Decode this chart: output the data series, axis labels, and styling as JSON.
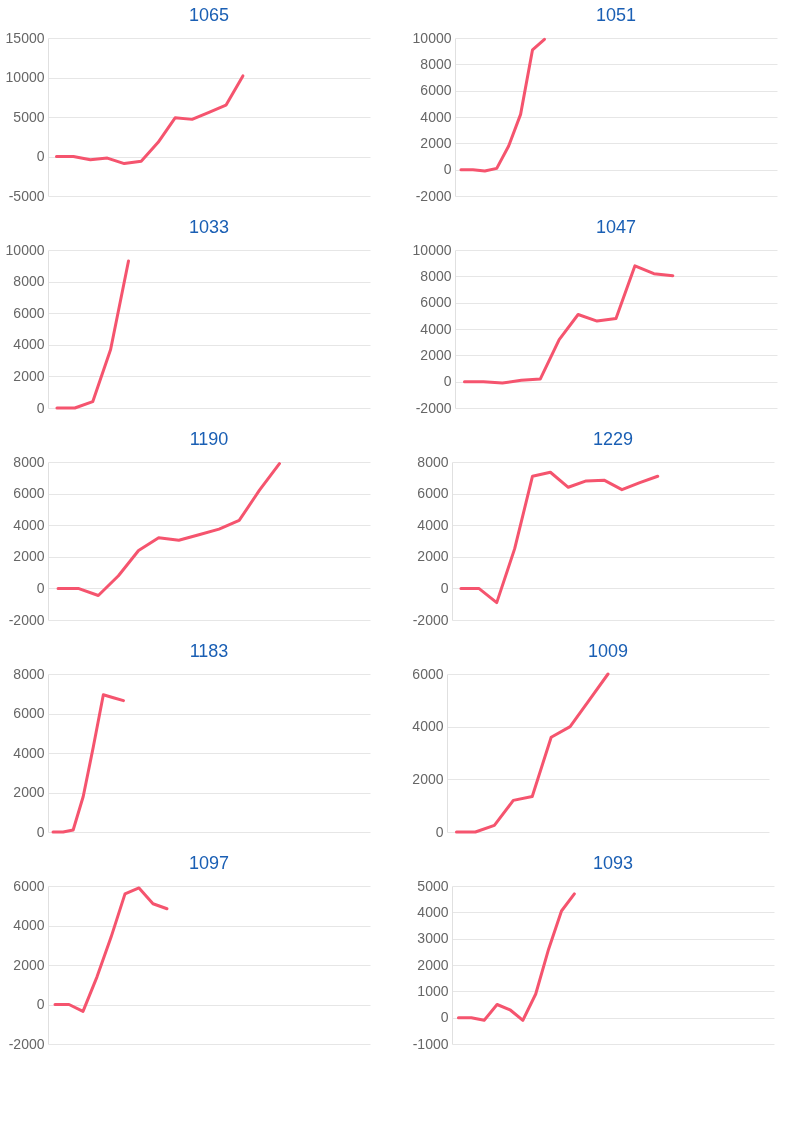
{
  "chart_data": [
    {
      "type": "line",
      "title": "1065",
      "categories": [
        null,
        null,
        null,
        null,
        null,
        null,
        null,
        null,
        null,
        null,
        null,
        null,
        null,
        null,
        null,
        null,
        null,
        null,
        null
      ],
      "series": [
        {
          "color": "#f5546e",
          "values": [
            0,
            0,
            -400,
            -200,
            -900,
            -600,
            1800,
            4900,
            4700,
            5600,
            6500,
            10200,
            null,
            null,
            null,
            null,
            null,
            null,
            null
          ]
        }
      ],
      "ylim": [
        -5000,
        15000
      ],
      "yticks": [
        -5000,
        0,
        5000,
        10000,
        15000
      ],
      "grid": "y",
      "tick_labels": "y",
      "marker": "none",
      "line_style": "solid"
    },
    {
      "type": "line",
      "title": "1051",
      "categories": [
        null,
        null,
        null,
        null,
        null,
        null,
        null,
        null,
        null,
        null,
        null,
        null,
        null,
        null,
        null,
        null,
        null,
        null,
        null,
        null,
        null,
        null,
        null,
        null,
        null,
        null,
        null
      ],
      "series": [
        {
          "color": "#f5546e",
          "values": [
            0,
            0,
            -100,
            100,
            1800,
            4200,
            9100,
            9900,
            null,
            null,
            null,
            null,
            null,
            null,
            null,
            null,
            null,
            null,
            null,
            null,
            null,
            null,
            null,
            null,
            null,
            null,
            null
          ]
        }
      ],
      "ylim": [
        -2000,
        10000
      ],
      "yticks": [
        -2000,
        0,
        2000,
        4000,
        6000,
        8000,
        10000
      ],
      "grid": "y",
      "tick_labels": "y",
      "marker": "none",
      "line_style": "solid"
    },
    {
      "type": "line",
      "title": "1033",
      "categories": [
        null,
        null,
        null,
        null,
        null,
        null,
        null,
        null,
        null,
        null,
        null,
        null,
        null,
        null,
        null,
        null,
        null,
        null
      ],
      "series": [
        {
          "color": "#f5546e",
          "values": [
            0,
            0,
            400,
            3700,
            9300,
            null,
            null,
            null,
            null,
            null,
            null,
            null,
            null,
            null,
            null,
            null,
            null,
            null
          ]
        }
      ],
      "ylim": [
        0,
        10000
      ],
      "yticks": [
        0,
        2000,
        4000,
        6000,
        8000,
        10000
      ],
      "grid": "y",
      "tick_labels": "y",
      "marker": "none",
      "line_style": "solid"
    },
    {
      "type": "line",
      "title": "1047",
      "categories": [
        null,
        null,
        null,
        null,
        null,
        null,
        null,
        null,
        null,
        null,
        null,
        null,
        null,
        null,
        null,
        null,
        null
      ],
      "series": [
        {
          "color": "#f5546e",
          "values": [
            0,
            0,
            -100,
            100,
            200,
            3200,
            5100,
            4600,
            4800,
            8800,
            8200,
            8050,
            null,
            null,
            null,
            null,
            null
          ]
        }
      ],
      "ylim": [
        -2000,
        10000
      ],
      "yticks": [
        -2000,
        0,
        2000,
        4000,
        6000,
        8000,
        10000
      ],
      "grid": "y",
      "tick_labels": "y",
      "marker": "none",
      "line_style": "solid"
    },
    {
      "type": "line",
      "title": "1190",
      "categories": [
        null,
        null,
        null,
        null,
        null,
        null,
        null,
        null,
        null,
        null,
        null,
        null,
        null,
        null,
        null,
        null
      ],
      "series": [
        {
          "color": "#f5546e",
          "values": [
            0,
            0,
            -450,
            800,
            2400,
            3200,
            3050,
            3400,
            3750,
            4300,
            6200,
            7900,
            null,
            null,
            null,
            null
          ]
        }
      ],
      "ylim": [
        -2000,
        8000
      ],
      "yticks": [
        -2000,
        0,
        2000,
        4000,
        6000,
        8000
      ],
      "grid": "y",
      "tick_labels": "y",
      "marker": "none",
      "line_style": "solid"
    },
    {
      "type": "line",
      "title": "1229",
      "categories": [
        null,
        null,
        null,
        null,
        null,
        null,
        null,
        null,
        null,
        null,
        null,
        null,
        null,
        null,
        null,
        null,
        null,
        null
      ],
      "series": [
        {
          "color": "#f5546e",
          "values": [
            0,
            0,
            -900,
            2500,
            7100,
            7350,
            6400,
            6800,
            6850,
            6250,
            6700,
            7100,
            null,
            null,
            null,
            null,
            null,
            null
          ]
        }
      ],
      "ylim": [
        -2000,
        8000
      ],
      "yticks": [
        -2000,
        0,
        2000,
        4000,
        6000,
        8000
      ],
      "grid": "y",
      "tick_labels": "y",
      "marker": "none",
      "line_style": "solid"
    },
    {
      "type": "line",
      "title": "1183",
      "categories": [
        null,
        null,
        null,
        null,
        null,
        null,
        null,
        null,
        null,
        null,
        null,
        null,
        null,
        null,
        null,
        null,
        null,
        null,
        null,
        null,
        null,
        null,
        null,
        null,
        null,
        null,
        null,
        null,
        null,
        null,
        null,
        null
      ],
      "series": [
        {
          "color": "#f5546e",
          "values": [
            0,
            0,
            100,
            1800,
            4300,
            6950,
            6800,
            6650,
            null,
            null,
            null,
            null,
            null,
            null,
            null,
            null,
            null,
            null,
            null,
            null,
            null,
            null,
            null,
            null,
            null,
            null,
            null,
            null,
            null,
            null,
            null,
            null
          ]
        }
      ],
      "ylim": [
        0,
        8000
      ],
      "yticks": [
        0,
        2000,
        4000,
        6000,
        8000
      ],
      "grid": "y",
      "tick_labels": "y",
      "marker": "none",
      "line_style": "solid"
    },
    {
      "type": "line",
      "title": "1009",
      "categories": [
        null,
        null,
        null,
        null,
        null,
        null,
        null,
        null,
        null,
        null,
        null,
        null,
        null,
        null,
        null,
        null,
        null
      ],
      "series": [
        {
          "color": "#f5546e",
          "values": [
            0,
            0,
            250,
            1200,
            1350,
            3600,
            4000,
            5000,
            6000,
            null,
            null,
            null,
            null,
            null,
            null,
            null,
            null
          ]
        }
      ],
      "ylim": [
        0,
        6000
      ],
      "yticks": [
        0,
        2000,
        4000,
        6000
      ],
      "grid": "y",
      "tick_labels": "y",
      "marker": "none",
      "line_style": "solid"
    },
    {
      "type": "line",
      "title": "1097",
      "categories": [
        null,
        null,
        null,
        null,
        null,
        null,
        null,
        null,
        null,
        null,
        null,
        null,
        null,
        null,
        null,
        null,
        null,
        null,
        null,
        null,
        null,
        null,
        null
      ],
      "series": [
        {
          "color": "#f5546e",
          "values": [
            0,
            0,
            -350,
            1400,
            3400,
            5600,
            5900,
            5100,
            4850,
            null,
            null,
            null,
            null,
            null,
            null,
            null,
            null,
            null,
            null,
            null,
            null,
            null,
            null
          ]
        }
      ],
      "ylim": [
        -2000,
        6000
      ],
      "yticks": [
        -2000,
        0,
        2000,
        4000,
        6000
      ],
      "grid": "y",
      "tick_labels": "y",
      "marker": "none",
      "line_style": "solid"
    },
    {
      "type": "line",
      "title": "1093",
      "categories": [
        null,
        null,
        null,
        null,
        null,
        null,
        null,
        null,
        null,
        null,
        null,
        null,
        null,
        null,
        null,
        null,
        null,
        null,
        null,
        null,
        null,
        null,
        null,
        null,
        null
      ],
      "series": [
        {
          "color": "#f5546e",
          "values": [
            0,
            0,
            -100,
            500,
            300,
            -100,
            900,
            2600,
            4050,
            4700,
            null,
            null,
            null,
            null,
            null,
            null,
            null,
            null,
            null,
            null,
            null,
            null,
            null,
            null,
            null
          ]
        }
      ],
      "ylim": [
        -1000,
        5000
      ],
      "yticks": [
        -1000,
        0,
        1000,
        2000,
        3000,
        4000,
        5000
      ],
      "grid": "y",
      "tick_labels": "y",
      "marker": "none",
      "line_style": "solid"
    }
  ]
}
